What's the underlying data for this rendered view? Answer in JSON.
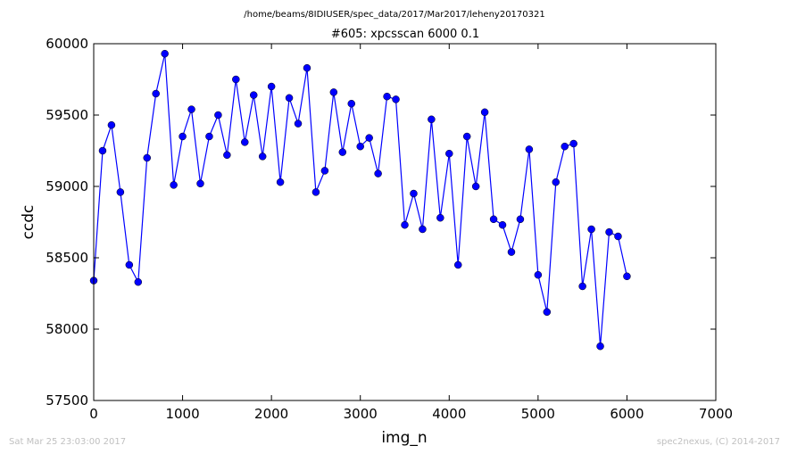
{
  "figure": {
    "suptitle": "/home/beams/8IDIUSER/spec_data/2017/Mar2017/leheny20170321",
    "footer_left": "Sat Mar 25 23:03:00 2017",
    "footer_right": "spec2nexus, (C) 2014-2017"
  },
  "chart_data": {
    "type": "line",
    "title": "#605: xpcsscan 6000 0.1",
    "xlabel": "img_n",
    "ylabel": "ccdc",
    "xlim": [
      0,
      7000
    ],
    "ylim": [
      57500,
      60000
    ],
    "xticks": [
      0,
      1000,
      2000,
      3000,
      4000,
      5000,
      6000,
      7000
    ],
    "yticks": [
      57500,
      58000,
      58500,
      59000,
      59500,
      60000
    ],
    "xtick_labels": [
      "0",
      "1000",
      "2000",
      "3000",
      "4000",
      "5000",
      "6000",
      "7000"
    ],
    "ytick_labels": [
      "57500",
      "58000",
      "58500",
      "59000",
      "59500",
      "60000"
    ],
    "grid": false,
    "legend": "none",
    "series": [
      {
        "color": "#0000ff",
        "marker": "circle",
        "x": [
          0,
          100,
          200,
          300,
          400,
          500,
          600,
          700,
          800,
          900,
          1000,
          1100,
          1200,
          1300,
          1400,
          1500,
          1600,
          1700,
          1800,
          1900,
          2000,
          2100,
          2200,
          2300,
          2400,
          2500,
          2600,
          2700,
          2800,
          2900,
          3000,
          3100,
          3200,
          3300,
          3400,
          3500,
          3600,
          3700,
          3800,
          3900,
          4000,
          4100,
          4200,
          4300,
          4400,
          4500,
          4600,
          4700,
          4800,
          4900,
          5000,
          5100,
          5200,
          5300,
          5400,
          5500,
          5600,
          5700,
          5800,
          5900,
          6000
        ],
        "y": [
          58340,
          59250,
          59430,
          58960,
          58450,
          58330,
          59200,
          59650,
          59930,
          59010,
          59350,
          59540,
          59020,
          59350,
          59500,
          59220,
          59750,
          59310,
          59640,
          59210,
          59700,
          59030,
          59620,
          59440,
          59830,
          58960,
          59110,
          59660,
          59240,
          59580,
          59280,
          59340,
          59090,
          59630,
          59610,
          58730,
          58950,
          58700,
          59470,
          58780,
          59230,
          58450,
          59350,
          59000,
          59520,
          58770,
          58730,
          58540,
          58770,
          59260,
          58380,
          58120,
          59030,
          59280,
          59300,
          58300,
          58700,
          57880,
          58680,
          58650,
          58370
        ]
      }
    ]
  }
}
